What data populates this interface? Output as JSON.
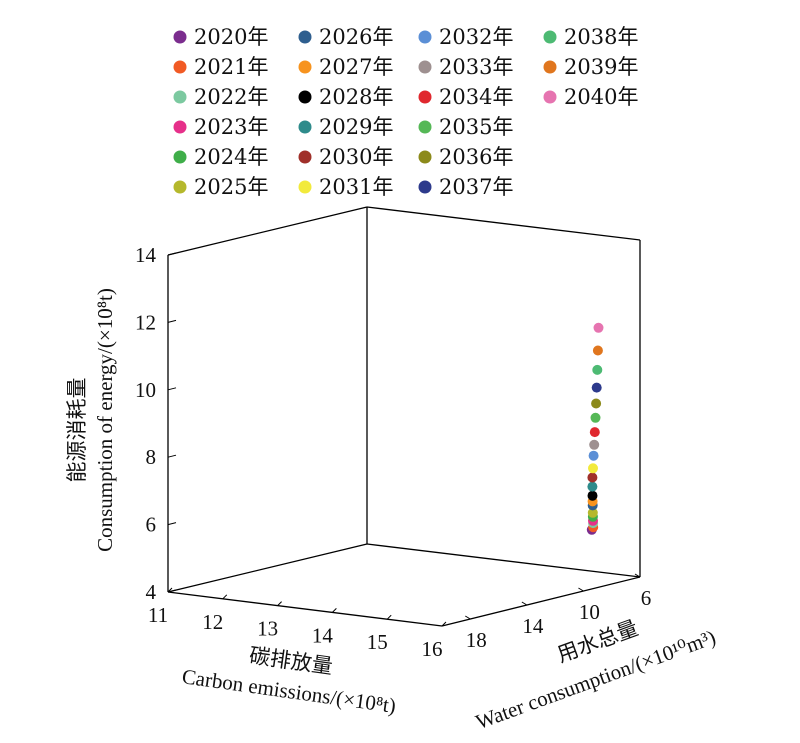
{
  "chart_data": {
    "type": "scatter",
    "series": [
      {
        "name": "2020年",
        "color": "#7b2d8e",
        "x": 15.25,
        "y": 6.5,
        "z": 5.3
      },
      {
        "name": "2021年",
        "color": "#f15a24",
        "x": 15.3,
        "y": 6.6,
        "z": 5.4
      },
      {
        "name": "2022年",
        "color": "#7cc9a0",
        "x": 15.35,
        "y": 6.8,
        "z": 5.55
      },
      {
        "name": "2023年",
        "color": "#e6308a",
        "x": 15.4,
        "y": 7.0,
        "z": 5.65
      },
      {
        "name": "2024年",
        "color": "#3fae49",
        "x": 15.45,
        "y": 7.2,
        "z": 5.8
      },
      {
        "name": "2025年",
        "color": "#b5b82c",
        "x": 15.5,
        "y": 7.4,
        "z": 5.95
      },
      {
        "name": "2026年",
        "color": "#2f5f8f",
        "x": 15.55,
        "y": 7.6,
        "z": 6.2
      },
      {
        "name": "2027年",
        "color": "#f7931e",
        "x": 15.6,
        "y": 7.8,
        "z": 6.35
      },
      {
        "name": "2028年",
        "color": "#000000",
        "x": 15.65,
        "y": 8.0,
        "z": 6.55
      },
      {
        "name": "2029年",
        "color": "#2e8b8b",
        "x": 15.7,
        "y": 8.2,
        "z": 6.85
      },
      {
        "name": "2030年",
        "color": "#a0302a",
        "x": 15.75,
        "y": 8.4,
        "z": 7.15
      },
      {
        "name": "2031年",
        "color": "#f2ea3c",
        "x": 15.8,
        "y": 8.55,
        "z": 7.45
      },
      {
        "name": "2032年",
        "color": "#5b8fd6",
        "x": 15.85,
        "y": 8.7,
        "z": 7.85
      },
      {
        "name": "2033年",
        "color": "#9e9090",
        "x": 15.9,
        "y": 8.85,
        "z": 8.2
      },
      {
        "name": "2034年",
        "color": "#e0282e",
        "x": 15.95,
        "y": 9.0,
        "z": 8.6
      },
      {
        "name": "2035年",
        "color": "#55b856",
        "x": 16.0,
        "y": 9.15,
        "z": 9.05
      },
      {
        "name": "2036年",
        "color": "#8c8a1a",
        "x": 16.05,
        "y": 9.3,
        "z": 9.5
      },
      {
        "name": "2037年",
        "color": "#2d3a8c",
        "x": 16.1,
        "y": 9.45,
        "z": 10.0
      },
      {
        "name": "2038年",
        "color": "#4dba73",
        "x": 16.15,
        "y": 9.6,
        "z": 10.55
      },
      {
        "name": "2039年",
        "color": "#e0761e",
        "x": 16.2,
        "y": 9.75,
        "z": 11.15
      },
      {
        "name": "2040年",
        "color": "#e674b0",
        "x": 16.25,
        "y": 9.9,
        "z": 11.85
      }
    ],
    "legend_position": "top",
    "x_axis": {
      "label_cn": "碳排放量",
      "label_en": "Carbon emissions/(×10⁸t)",
      "range": [
        11,
        16
      ],
      "ticks": [
        "11",
        "12",
        "13",
        "14",
        "15",
        "16"
      ]
    },
    "y_axis": {
      "label_cn": "用水总量",
      "label_en": "Water consumption/(×10¹⁰m³)",
      "range": [
        6,
        20
      ],
      "ticks": [
        "6",
        "10",
        "14",
        "18"
      ]
    },
    "z_axis": {
      "label_cn": "能源消耗量",
      "label_en": "Consumption of energy/(×10⁸t)",
      "range": [
        4,
        14
      ],
      "ticks": [
        "4",
        "6",
        "8",
        "10",
        "12",
        "14"
      ]
    },
    "grid": false
  }
}
